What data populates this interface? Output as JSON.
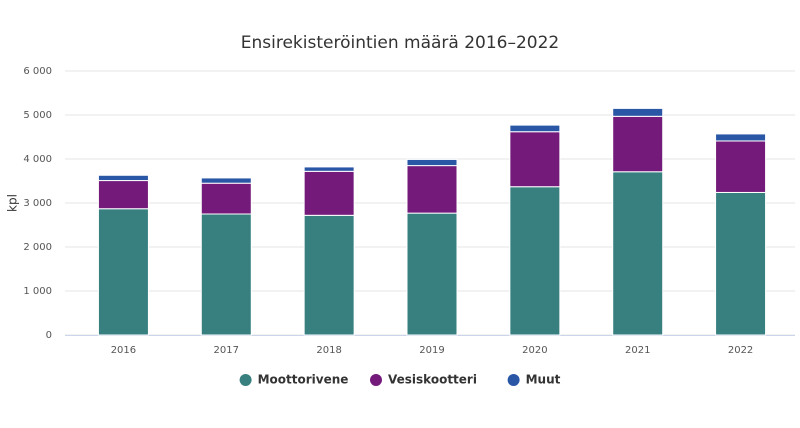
{
  "chart_data": {
    "type": "stacked-bar",
    "title": "Ensirekisteröintien määrä 2016–2022",
    "ylabel": "kpl",
    "categories": [
      "2016",
      "2017",
      "2018",
      "2019",
      "2020",
      "2021",
      "2022"
    ],
    "series": [
      {
        "name": "Moottorivene",
        "color": "#388080",
        "values": [
          2870,
          2750,
          2720,
          2770,
          3370,
          3710,
          3240
        ]
      },
      {
        "name": "Vesiskootteri",
        "color": "#731a7a",
        "values": [
          640,
          700,
          1000,
          1080,
          1250,
          1260,
          1170
        ]
      },
      {
        "name": "Muut",
        "color": "#2a56a6",
        "values": [
          120,
          120,
          100,
          140,
          150,
          180,
          160
        ]
      }
    ],
    "ylim": [
      0,
      6000
    ],
    "yticks": [
      0,
      {
        "value": 1000,
        "label": "1 000"
      },
      {
        "value": 2000,
        "label": "2 000"
      },
      {
        "value": 3000,
        "label": "3 000"
      },
      {
        "value": 4000,
        "label": "4 000"
      },
      {
        "value": 5000,
        "label": "5 000"
      },
      {
        "value": 6000,
        "label": "6 000"
      }
    ],
    "grid": true,
    "legend": "bottom"
  }
}
